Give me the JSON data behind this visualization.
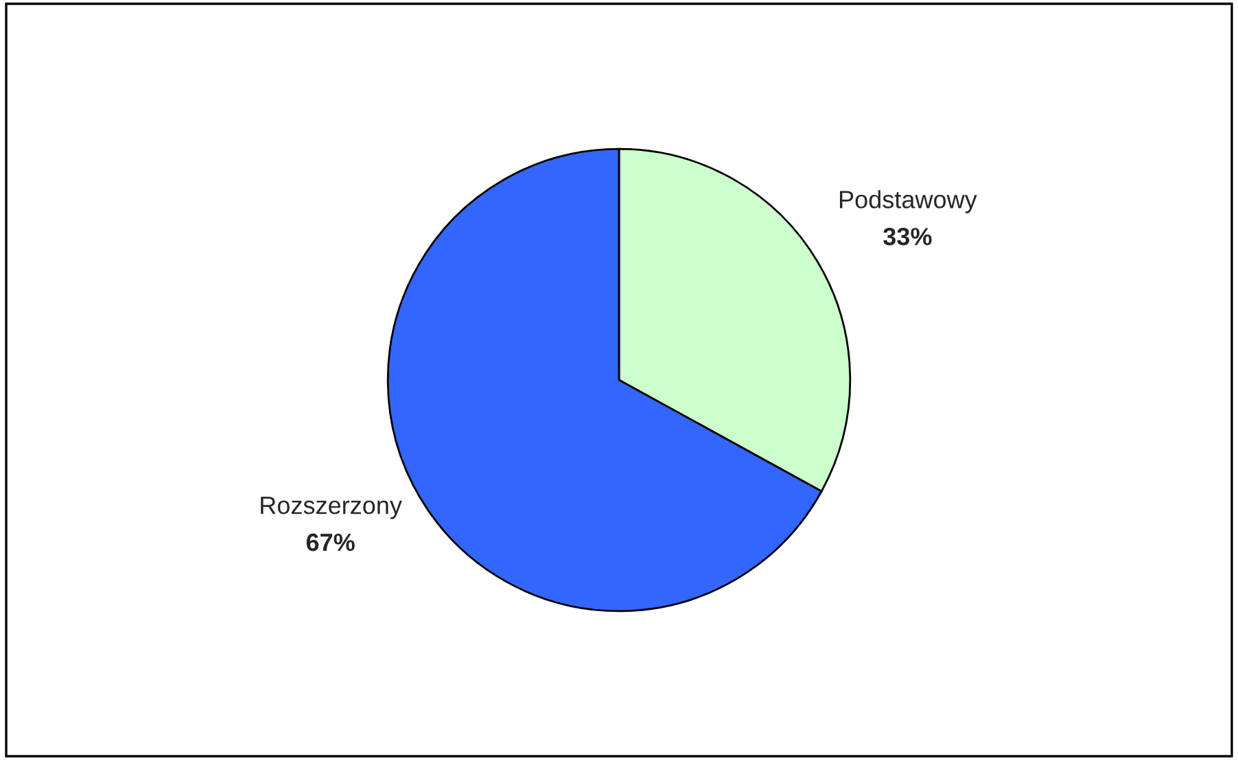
{
  "chart_data": {
    "type": "pie",
    "categories": [
      "Podstawowy",
      "Rozszerzony"
    ],
    "values": [
      33,
      67
    ],
    "colors": [
      "#ccffcc",
      "#3366ff"
    ],
    "value_labels": [
      "33%",
      "67%"
    ],
    "legend": false
  }
}
